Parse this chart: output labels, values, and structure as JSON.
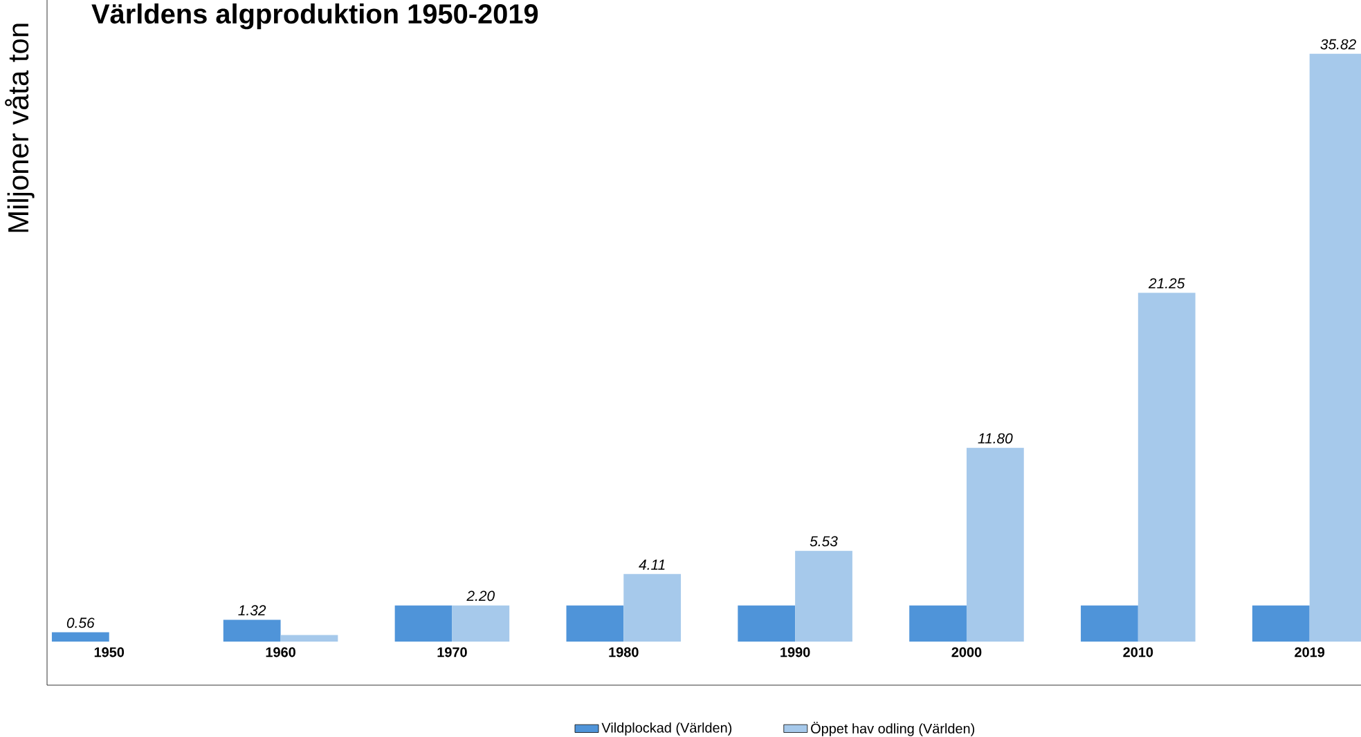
{
  "chart_data": {
    "type": "bar",
    "title": "Världens algproduktion 1950-2019",
    "ylabel": "Miljoner våta ton",
    "categories": [
      "1950",
      "1960",
      "1970",
      "1980",
      "1990",
      "2000",
      "2010",
      "2019"
    ],
    "series": [
      {
        "name": "Vildplockad (Världen)",
        "color": "#4f94d9",
        "values": [
          0.56,
          1.32,
          2.2,
          2.2,
          2.2,
          2.2,
          2.2,
          2.2
        ],
        "value_labels": [
          "0.56",
          "1.32",
          null,
          null,
          null,
          null,
          null,
          null
        ]
      },
      {
        "name": "Öppet hav odling (Världen)",
        "color": "#a6c9eb",
        "values": [
          null,
          0.4,
          2.2,
          4.11,
          5.53,
          11.8,
          21.25,
          35.82
        ],
        "value_labels": [
          null,
          null,
          "2.20",
          "4.11",
          "5.53",
          "11.80",
          "21.25",
          "35.82"
        ]
      }
    ],
    "ylim": [
      -2.66,
      39.1
    ],
    "legend": "bottom"
  }
}
